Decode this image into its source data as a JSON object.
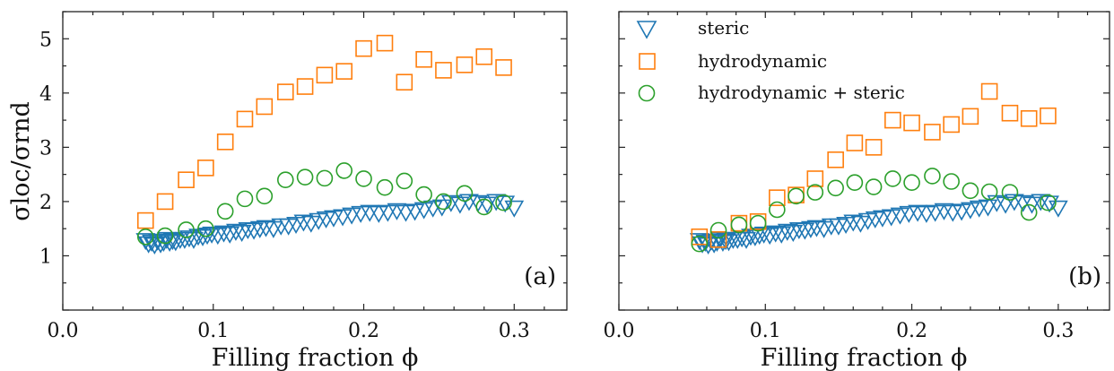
{
  "chart_data": [
    {
      "type": "scatter",
      "panel_label": "(a)",
      "xlabel": "Filling fraction ϕ",
      "ylabel": "σloc/σrnd",
      "xlim": [
        0.0,
        0.335
      ],
      "ylim": [
        0.0,
        5.5
      ],
      "xticks": [
        "0.0",
        "0.1",
        "0.2",
        "0.3"
      ],
      "yticks": [
        "1",
        "2",
        "3",
        "4",
        "5"
      ],
      "series": [
        {
          "name": "steric",
          "x": [
            0.055,
            0.057,
            0.059,
            0.061,
            0.063,
            0.065,
            0.067,
            0.069,
            0.071,
            0.073,
            0.075,
            0.078,
            0.081,
            0.084,
            0.087,
            0.09,
            0.093,
            0.096,
            0.099,
            0.103,
            0.107,
            0.111,
            0.115,
            0.119,
            0.123,
            0.127,
            0.131,
            0.135,
            0.14,
            0.145,
            0.15,
            0.155,
            0.16,
            0.165,
            0.17,
            0.175,
            0.18,
            0.186,
            0.192,
            0.198,
            0.204,
            0.21,
            0.216,
            0.222,
            0.228,
            0.234,
            0.24,
            0.246,
            0.252,
            0.258,
            0.264,
            0.27,
            0.276,
            0.282,
            0.288,
            0.294,
            0.3
          ],
          "y": [
            1.28,
            1.22,
            1.25,
            1.2,
            1.27,
            1.22,
            1.25,
            1.3,
            1.25,
            1.28,
            1.26,
            1.3,
            1.3,
            1.33,
            1.3,
            1.36,
            1.35,
            1.38,
            1.4,
            1.38,
            1.42,
            1.4,
            1.45,
            1.43,
            1.48,
            1.47,
            1.5,
            1.52,
            1.5,
            1.55,
            1.55,
            1.58,
            1.62,
            1.6,
            1.65,
            1.68,
            1.7,
            1.72,
            1.75,
            1.78,
            1.8,
            1.78,
            1.8,
            1.83,
            1.8,
            1.82,
            1.85,
            1.88,
            1.9,
            1.98,
            1.95,
            2.0,
            1.98,
            1.95,
            2.0,
            1.97,
            1.88
          ]
        },
        {
          "name": "hydrodynamic",
          "x": [
            0.055,
            0.068,
            0.082,
            0.095,
            0.108,
            0.121,
            0.134,
            0.148,
            0.161,
            0.174,
            0.187,
            0.2,
            0.214,
            0.227,
            0.24,
            0.253,
            0.267,
            0.28,
            0.293
          ],
          "y": [
            1.65,
            2.0,
            2.4,
            2.62,
            3.1,
            3.52,
            3.75,
            4.02,
            4.12,
            4.33,
            4.4,
            4.82,
            4.92,
            4.2,
            4.62,
            4.42,
            4.52,
            4.67,
            4.47
          ]
        },
        {
          "name": "hydrodynamic + steric",
          "x": [
            0.055,
            0.068,
            0.082,
            0.095,
            0.108,
            0.121,
            0.134,
            0.148,
            0.161,
            0.174,
            0.187,
            0.2,
            0.214,
            0.227,
            0.24,
            0.253,
            0.267,
            0.28,
            0.293
          ],
          "y": [
            1.35,
            1.37,
            1.48,
            1.5,
            1.82,
            2.05,
            2.1,
            2.4,
            2.45,
            2.43,
            2.57,
            2.42,
            2.26,
            2.38,
            2.13,
            2.0,
            2.15,
            1.9,
            1.98
          ]
        }
      ]
    },
    {
      "type": "scatter",
      "panel_label": "(b)",
      "xlabel": "Filling fraction ϕ",
      "ylabel": "",
      "xlim": [
        0.0,
        0.335
      ],
      "ylim": [
        0.0,
        5.5
      ],
      "xticks": [
        "0.0",
        "0.1",
        "0.2",
        "0.3"
      ],
      "yticks": [],
      "legend": "top-left",
      "series": [
        {
          "name": "steric",
          "x": [
            0.055,
            0.057,
            0.059,
            0.061,
            0.063,
            0.065,
            0.067,
            0.069,
            0.071,
            0.073,
            0.075,
            0.078,
            0.081,
            0.084,
            0.087,
            0.09,
            0.093,
            0.096,
            0.099,
            0.103,
            0.107,
            0.111,
            0.115,
            0.119,
            0.123,
            0.127,
            0.131,
            0.135,
            0.14,
            0.145,
            0.15,
            0.155,
            0.16,
            0.165,
            0.17,
            0.175,
            0.18,
            0.186,
            0.192,
            0.198,
            0.204,
            0.21,
            0.216,
            0.222,
            0.228,
            0.234,
            0.24,
            0.246,
            0.252,
            0.258,
            0.264,
            0.27,
            0.276,
            0.282,
            0.288,
            0.294,
            0.3
          ],
          "y": [
            1.28,
            1.22,
            1.25,
            1.2,
            1.27,
            1.22,
            1.25,
            1.3,
            1.25,
            1.28,
            1.26,
            1.3,
            1.3,
            1.33,
            1.3,
            1.36,
            1.35,
            1.38,
            1.4,
            1.38,
            1.42,
            1.4,
            1.45,
            1.43,
            1.48,
            1.47,
            1.5,
            1.52,
            1.5,
            1.55,
            1.55,
            1.58,
            1.62,
            1.6,
            1.65,
            1.68,
            1.7,
            1.72,
            1.75,
            1.78,
            1.8,
            1.78,
            1.8,
            1.83,
            1.8,
            1.82,
            1.85,
            1.88,
            1.9,
            1.98,
            1.95,
            2.0,
            1.98,
            1.95,
            2.0,
            1.97,
            1.88
          ]
        },
        {
          "name": "hydrodynamic",
          "x": [
            0.055,
            0.068,
            0.082,
            0.095,
            0.108,
            0.121,
            0.134,
            0.148,
            0.161,
            0.174,
            0.187,
            0.2,
            0.214,
            0.227,
            0.24,
            0.253,
            0.267,
            0.28,
            0.293
          ],
          "y": [
            1.35,
            1.3,
            1.6,
            1.63,
            2.07,
            2.12,
            2.42,
            2.77,
            3.08,
            3.0,
            3.5,
            3.45,
            3.28,
            3.42,
            3.57,
            4.03,
            3.63,
            3.53,
            3.58
          ]
        },
        {
          "name": "hydrodynamic + steric",
          "x": [
            0.055,
            0.068,
            0.082,
            0.095,
            0.108,
            0.121,
            0.134,
            0.148,
            0.161,
            0.174,
            0.187,
            0.2,
            0.214,
            0.227,
            0.24,
            0.253,
            0.267,
            0.28,
            0.293
          ],
          "y": [
            1.22,
            1.47,
            1.57,
            1.6,
            1.85,
            2.1,
            2.17,
            2.25,
            2.35,
            2.27,
            2.42,
            2.35,
            2.47,
            2.37,
            2.2,
            2.18,
            2.17,
            1.8,
            1.98
          ]
        }
      ]
    }
  ],
  "legend": {
    "entries": [
      {
        "label": "steric",
        "marker": "triangle-down",
        "color": "#1f77b4"
      },
      {
        "label": "hydrodynamic",
        "marker": "square",
        "color": "#ff7f0e"
      },
      {
        "label": "hydrodynamic + steric",
        "marker": "circle",
        "color": "#2ca02c"
      }
    ]
  },
  "colors": {
    "steric": "#1f77b4",
    "hydrodynamic": "#ff7f0e",
    "hydrodynamic_steric": "#2ca02c"
  }
}
